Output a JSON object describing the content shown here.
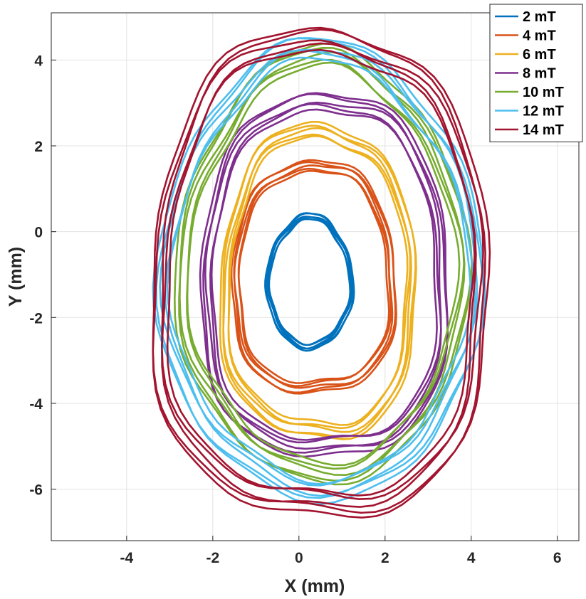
{
  "chart_data": {
    "type": "line",
    "title": "",
    "xlabel": "X (mm)",
    "ylabel": "Y (mm)",
    "xlim": [
      -5.75,
      6.5
    ],
    "ylim": [
      -7.2,
      5.1
    ],
    "xticks": [
      -4,
      -2,
      0,
      2,
      4,
      6
    ],
    "yticks": [
      -6,
      -4,
      -2,
      0,
      2,
      4
    ],
    "xtick_labels": [
      "-4",
      "-2",
      "0",
      "2",
      "4",
      "6"
    ],
    "ytick_labels": [
      "-6",
      "-4",
      "-2",
      "0",
      "2",
      "4"
    ],
    "grid": true,
    "legend_position": "top-right",
    "series": [
      {
        "name": "2 mT",
        "color": "#0072BD",
        "cx": 0.25,
        "cy": -1.15,
        "rx": 0.95,
        "ry": 1.55,
        "loops": 5
      },
      {
        "name": "4 mT",
        "color": "#D95319",
        "cx": 0.35,
        "cy": -1.05,
        "rx": 1.85,
        "ry": 2.75,
        "loops": 5
      },
      {
        "name": "6 mT",
        "color": "#EDB120",
        "cx": 0.45,
        "cy": -1.15,
        "rx": 2.2,
        "ry": 3.7,
        "loops": 5
      },
      {
        "name": "8 mT",
        "color": "#7E2F8E",
        "cx": 0.6,
        "cy": -1.0,
        "rx": 2.8,
        "ry": 4.3,
        "loops": 5
      },
      {
        "name": "10 mT",
        "color": "#77AC30",
        "cx": 0.55,
        "cy": -0.75,
        "rx": 3.2,
        "ry": 4.95,
        "loops": 5
      },
      {
        "name": "12 mT",
        "color": "#4DBEEE",
        "cx": 0.5,
        "cy": -0.85,
        "rx": 3.55,
        "ry": 5.25,
        "loops": 5
      },
      {
        "name": "14 mT",
        "color": "#A2142F",
        "cx": 0.5,
        "cy": -0.95,
        "rx": 3.8,
        "ry": 5.75,
        "loops": 5
      }
    ]
  }
}
